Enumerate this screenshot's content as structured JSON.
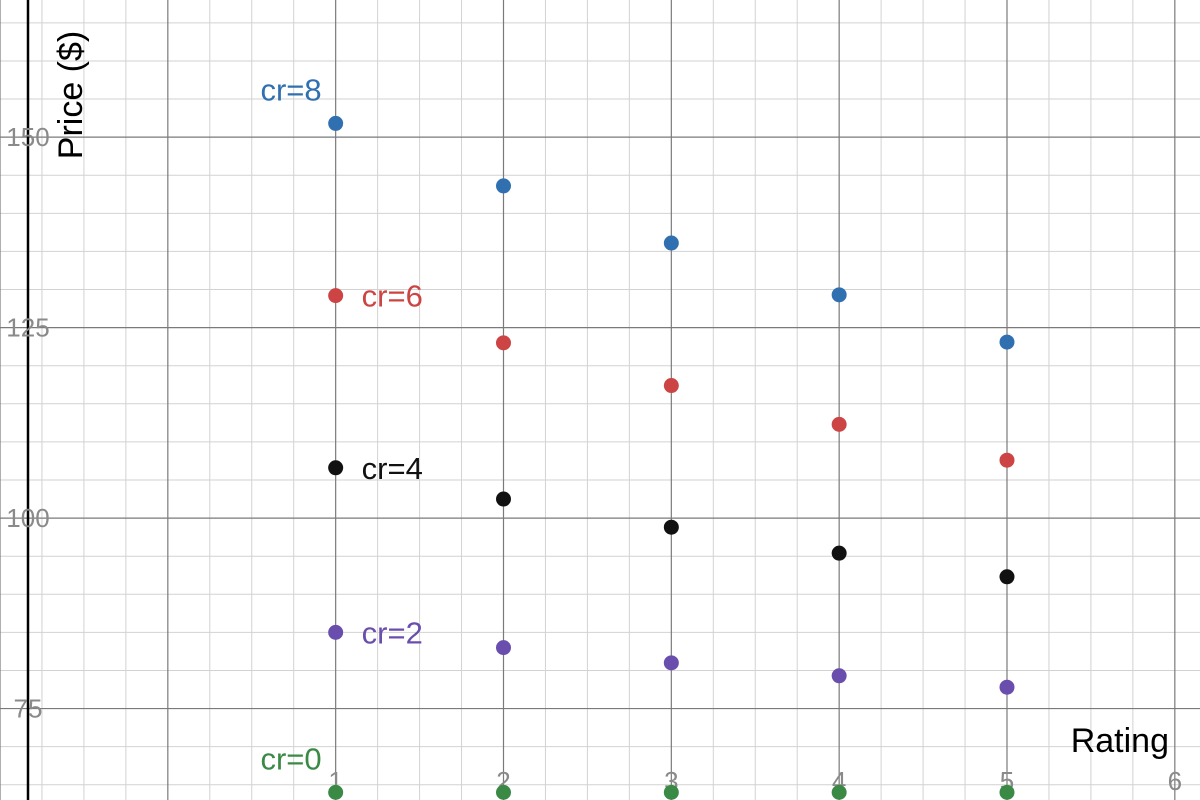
{
  "chart_data": {
    "type": "scatter",
    "title": "",
    "xlabel": "Rating",
    "ylabel": "Price ($)",
    "xlim": [
      -1,
      6.15
    ],
    "ylim": [
      63,
      168
    ],
    "grid": true,
    "x_ticks": [
      1,
      2,
      3,
      4,
      5,
      6
    ],
    "y_ticks": [
      75,
      100,
      125,
      150
    ],
    "x_tick_labels": [
      "1",
      "2",
      "3",
      "4",
      "5",
      "6"
    ],
    "y_tick_labels": [
      "75",
      "100",
      "125",
      "150"
    ],
    "series": [
      {
        "name": "cr=0",
        "color": "#3a8a46",
        "x": [
          1,
          2,
          3,
          4,
          5
        ],
        "y": [
          64,
          64,
          64,
          64,
          64
        ]
      },
      {
        "name": "cr=2",
        "color": "#6a4eae",
        "x": [
          1,
          2,
          3,
          4,
          5
        ],
        "y": [
          85,
          83,
          81,
          79.3,
          77.8
        ]
      },
      {
        "name": "cr=4",
        "color": "#111111",
        "x": [
          1,
          2,
          3,
          4,
          5
        ],
        "y": [
          106.6,
          102.5,
          98.8,
          95.4,
          92.3
        ]
      },
      {
        "name": "cr=6",
        "color": "#cc4444",
        "x": [
          1,
          2,
          3,
          4,
          5
        ],
        "y": [
          129.2,
          123,
          117.4,
          112.3,
          107.6
        ]
      },
      {
        "name": "cr=8",
        "color": "#3070b0",
        "x": [
          1,
          2,
          3,
          4,
          5
        ],
        "y": [
          151.8,
          143.6,
          136.1,
          129.3,
          123.1
        ]
      }
    ]
  }
}
